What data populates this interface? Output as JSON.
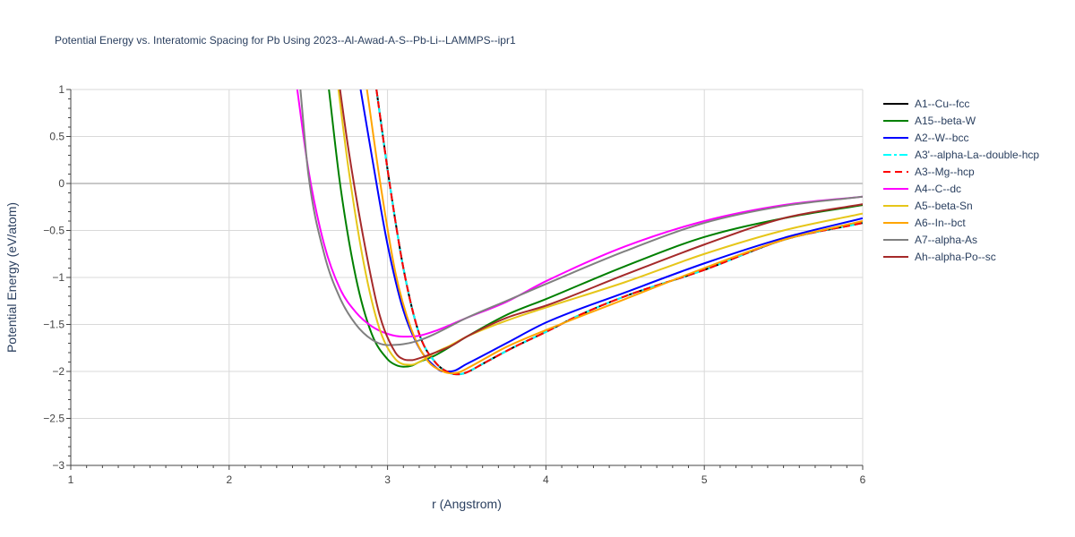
{
  "chart_data": {
    "type": "line",
    "title": "Potential Energy vs. Interatomic Spacing for Pb Using 2023--Al-Awad-A-S--Pb-Li--LAMMPS--ipr1",
    "xlabel": "r (Angstrom)",
    "ylabel": "Potential Energy (eV/atom)",
    "xlim": [
      1,
      6
    ],
    "ylim": [
      -3,
      1
    ],
    "xticks": [
      "1",
      "2",
      "3",
      "4",
      "5",
      "6"
    ],
    "yticks": [
      "1",
      "0.5",
      "0",
      "−0.5",
      "−1",
      "−1.5",
      "−2",
      "−2.5",
      "−3"
    ],
    "grid": true,
    "legend_position": "right",
    "series": [
      {
        "name": "A1--Cu--fcc",
        "color": "#000000",
        "dash": "solid",
        "x": [
          2.93,
          3.0,
          3.1,
          3.2,
          3.3,
          3.4,
          3.45,
          3.5,
          3.6,
          3.8,
          4.0,
          4.2,
          4.5,
          5.0,
          5.5,
          6.0
        ],
        "y": [
          1.0,
          0.15,
          -0.9,
          -1.6,
          -1.9,
          -2.02,
          -2.03,
          -2.01,
          -1.92,
          -1.74,
          -1.58,
          -1.41,
          -1.2,
          -0.92,
          -0.6,
          -0.42
        ]
      },
      {
        "name": "A15--beta-W",
        "color": "#008000",
        "dash": "solid",
        "x": [
          2.63,
          2.7,
          2.8,
          2.9,
          3.0,
          3.05,
          3.1,
          3.15,
          3.2,
          3.3,
          3.5,
          3.75,
          4.0,
          4.5,
          5.0,
          5.5,
          6.0
        ],
        "y": [
          1.0,
          0.0,
          -1.0,
          -1.6,
          -1.87,
          -1.93,
          -1.95,
          -1.94,
          -1.9,
          -1.83,
          -1.63,
          -1.4,
          -1.23,
          -0.88,
          -0.57,
          -0.37,
          -0.23
        ]
      },
      {
        "name": "A2--W--bcc",
        "color": "#0000ff",
        "dash": "solid",
        "x": [
          2.83,
          2.9,
          3.0,
          3.1,
          3.2,
          3.3,
          3.35,
          3.4,
          3.5,
          3.75,
          4.0,
          4.5,
          5.0,
          5.5,
          6.0
        ],
        "y": [
          1.0,
          0.3,
          -0.65,
          -1.35,
          -1.75,
          -1.95,
          -2.0,
          -2.0,
          -1.92,
          -1.7,
          -1.48,
          -1.16,
          -0.85,
          -0.58,
          -0.37
        ]
      },
      {
        "name": "A3'--alpha-La--double-hcp",
        "color": "#00ffff",
        "dash": "dashdot",
        "x": [
          2.93,
          3.0,
          3.1,
          3.2,
          3.3,
          3.4,
          3.45,
          3.5,
          3.6,
          3.8,
          4.0,
          4.2,
          4.5,
          5.0,
          5.5,
          6.0
        ],
        "y": [
          1.0,
          0.15,
          -0.9,
          -1.6,
          -1.9,
          -2.02,
          -2.03,
          -2.01,
          -1.92,
          -1.74,
          -1.58,
          -1.41,
          -1.2,
          -0.92,
          -0.6,
          -0.42
        ]
      },
      {
        "name": "A3--Mg--hcp",
        "color": "#ff0000",
        "dash": "dash",
        "x": [
          2.93,
          3.0,
          3.1,
          3.2,
          3.3,
          3.4,
          3.45,
          3.5,
          3.6,
          3.8,
          4.0,
          4.2,
          4.5,
          5.0,
          5.5,
          6.0
        ],
        "y": [
          1.0,
          0.15,
          -0.9,
          -1.6,
          -1.9,
          -2.02,
          -2.03,
          -2.01,
          -1.92,
          -1.74,
          -1.58,
          -1.41,
          -1.2,
          -0.92,
          -0.6,
          -0.42
        ]
      },
      {
        "name": "A4--C--dc",
        "color": "#ff00ff",
        "dash": "solid",
        "x": [
          2.43,
          2.5,
          2.6,
          2.7,
          2.8,
          2.9,
          3.0,
          3.1,
          3.2,
          3.3,
          3.5,
          3.75,
          4.0,
          4.5,
          5.0,
          5.5,
          6.0
        ],
        "y": [
          1.0,
          0.15,
          -0.65,
          -1.12,
          -1.37,
          -1.52,
          -1.6,
          -1.63,
          -1.62,
          -1.57,
          -1.43,
          -1.26,
          -1.04,
          -0.67,
          -0.4,
          -0.23,
          -0.14
        ]
      },
      {
        "name": "A5--beta-Sn",
        "color": "#e6c619",
        "dash": "solid",
        "x": [
          2.69,
          2.75,
          2.85,
          2.95,
          3.05,
          3.15,
          3.2,
          3.3,
          3.4,
          3.5,
          3.75,
          4.0,
          4.5,
          5.0,
          5.5,
          6.0
        ],
        "y": [
          1.0,
          0.2,
          -0.85,
          -1.55,
          -1.87,
          -1.93,
          -1.9,
          -1.8,
          -1.72,
          -1.63,
          -1.46,
          -1.32,
          -1.05,
          -0.75,
          -0.5,
          -0.32
        ]
      },
      {
        "name": "A6--In--bct",
        "color": "#ffa500",
        "dash": "solid",
        "x": [
          2.87,
          2.95,
          3.05,
          3.15,
          3.25,
          3.35,
          3.4,
          3.45,
          3.5,
          3.75,
          4.0,
          4.5,
          5.0,
          5.5,
          6.0
        ],
        "y": [
          1.0,
          0.05,
          -0.95,
          -1.55,
          -1.88,
          -2.0,
          -2.02,
          -2.01,
          -1.97,
          -1.74,
          -1.56,
          -1.23,
          -0.9,
          -0.6,
          -0.4
        ]
      },
      {
        "name": "A7--alpha-As",
        "color": "#808080",
        "dash": "solid",
        "x": [
          2.45,
          2.5,
          2.6,
          2.7,
          2.8,
          2.9,
          3.0,
          3.1,
          3.2,
          3.3,
          3.5,
          3.75,
          4.0,
          4.5,
          5.0,
          5.5,
          6.0
        ],
        "y": [
          1.0,
          0.1,
          -0.75,
          -1.22,
          -1.5,
          -1.66,
          -1.72,
          -1.71,
          -1.67,
          -1.6,
          -1.43,
          -1.25,
          -1.07,
          -0.72,
          -0.42,
          -0.24,
          -0.14
        ]
      },
      {
        "name": "Ah--alpha-Po--sc",
        "color": "#a52a2a",
        "dash": "solid",
        "x": [
          2.7,
          2.75,
          2.85,
          2.95,
          3.05,
          3.1,
          3.15,
          3.2,
          3.3,
          3.4,
          3.5,
          3.75,
          4.0,
          4.5,
          5.0,
          5.5,
          6.0
        ],
        "y": [
          1.0,
          0.4,
          -0.6,
          -1.4,
          -1.8,
          -1.87,
          -1.88,
          -1.86,
          -1.8,
          -1.73,
          -1.63,
          -1.43,
          -1.3,
          -0.97,
          -0.65,
          -0.37,
          -0.22
        ]
      }
    ]
  }
}
